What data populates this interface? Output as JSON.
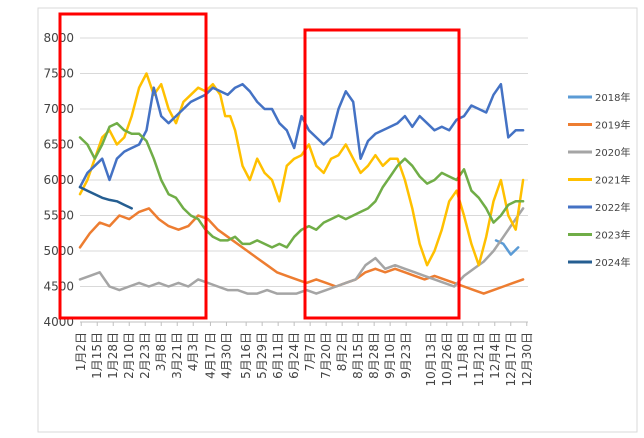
{
  "chart_data": {
    "type": "line",
    "ylim": [
      4000,
      8000
    ],
    "yticks": [
      "4000",
      "4500",
      "5000",
      "5500",
      "6000",
      "6500",
      "7000",
      "7500",
      "8000"
    ],
    "xlim": [
      0,
      364
    ],
    "xticks": [
      {
        "label": "1月2日",
        "day": 1
      },
      {
        "label": "1月15日",
        "day": 14
      },
      {
        "label": "1月28日",
        "day": 27
      },
      {
        "label": "2月10日",
        "day": 40
      },
      {
        "label": "2月23日",
        "day": 53
      },
      {
        "label": "3月8日",
        "day": 66
      },
      {
        "label": "3月21日",
        "day": 79
      },
      {
        "label": "4月3日",
        "day": 92
      },
      {
        "label": "4月17日",
        "day": 106
      },
      {
        "label": "4月30日",
        "day": 119
      },
      {
        "label": "5月16日",
        "day": 135
      },
      {
        "label": "5月29日",
        "day": 148
      },
      {
        "label": "6月11日",
        "day": 161
      },
      {
        "label": "6月24日",
        "day": 174
      },
      {
        "label": "7月7日",
        "day": 187
      },
      {
        "label": "7月20日",
        "day": 200
      },
      {
        "label": "8月2日",
        "day": 213
      },
      {
        "label": "8月15日",
        "day": 226
      },
      {
        "label": "8月28日",
        "day": 239
      },
      {
        "label": "9月10日",
        "day": 252
      },
      {
        "label": "9月23日",
        "day": 265
      },
      {
        "label": "10月13日",
        "day": 285
      },
      {
        "label": "10月26日",
        "day": 298
      },
      {
        "label": "11月8日",
        "day": 311
      },
      {
        "label": "11月21日",
        "day": 324
      },
      {
        "label": "12月4日",
        "day": 337
      },
      {
        "label": "12月17日",
        "day": 350
      },
      {
        "label": "12月30日",
        "day": 363
      }
    ],
    "series": [
      {
        "name": "2018年",
        "color": "#5B9BD5",
        "points": [
          [
            338,
            5150
          ],
          [
            344,
            5100
          ],
          [
            350,
            4950
          ],
          [
            356,
            5050
          ]
        ]
      },
      {
        "name": "2019年",
        "color": "#ED7D31",
        "points": [
          [
            0,
            5050
          ],
          [
            8,
            5250
          ],
          [
            16,
            5400
          ],
          [
            24,
            5350
          ],
          [
            32,
            5500
          ],
          [
            40,
            5450
          ],
          [
            48,
            5550
          ],
          [
            56,
            5600
          ],
          [
            64,
            5450
          ],
          [
            72,
            5350
          ],
          [
            80,
            5300
          ],
          [
            88,
            5350
          ],
          [
            96,
            5500
          ],
          [
            104,
            5450
          ],
          [
            112,
            5300
          ],
          [
            120,
            5200
          ],
          [
            128,
            5100
          ],
          [
            136,
            5000
          ],
          [
            144,
            4900
          ],
          [
            152,
            4800
          ],
          [
            160,
            4700
          ],
          [
            168,
            4650
          ],
          [
            176,
            4600
          ],
          [
            184,
            4550
          ],
          [
            192,
            4600
          ],
          [
            200,
            4550
          ],
          [
            208,
            4500
          ],
          [
            216,
            4550
          ],
          [
            224,
            4600
          ],
          [
            232,
            4700
          ],
          [
            240,
            4750
          ],
          [
            248,
            4700
          ],
          [
            256,
            4750
          ],
          [
            264,
            4700
          ],
          [
            272,
            4650
          ],
          [
            280,
            4600
          ],
          [
            288,
            4650
          ],
          [
            296,
            4600
          ],
          [
            304,
            4550
          ],
          [
            312,
            4500
          ],
          [
            320,
            4450
          ],
          [
            328,
            4400
          ],
          [
            336,
            4450
          ],
          [
            344,
            4500
          ],
          [
            352,
            4550
          ],
          [
            360,
            4600
          ]
        ]
      },
      {
        "name": "2020年",
        "color": "#A5A5A5",
        "points": [
          [
            0,
            4600
          ],
          [
            8,
            4650
          ],
          [
            16,
            4700
          ],
          [
            24,
            4500
          ],
          [
            32,
            4450
          ],
          [
            40,
            4500
          ],
          [
            48,
            4550
          ],
          [
            56,
            4500
          ],
          [
            64,
            4550
          ],
          [
            72,
            4500
          ],
          [
            80,
            4550
          ],
          [
            88,
            4500
          ],
          [
            96,
            4600
          ],
          [
            104,
            4550
          ],
          [
            112,
            4500
          ],
          [
            120,
            4450
          ],
          [
            128,
            4450
          ],
          [
            136,
            4400
          ],
          [
            144,
            4400
          ],
          [
            152,
            4450
          ],
          [
            160,
            4400
          ],
          [
            168,
            4400
          ],
          [
            176,
            4400
          ],
          [
            184,
            4450
          ],
          [
            192,
            4400
          ],
          [
            200,
            4450
          ],
          [
            208,
            4500
          ],
          [
            216,
            4550
          ],
          [
            224,
            4600
          ],
          [
            232,
            4800
          ],
          [
            240,
            4900
          ],
          [
            248,
            4750
          ],
          [
            256,
            4800
          ],
          [
            264,
            4750
          ],
          [
            272,
            4700
          ],
          [
            280,
            4650
          ],
          [
            288,
            4600
          ],
          [
            296,
            4550
          ],
          [
            304,
            4500
          ],
          [
            312,
            4650
          ],
          [
            320,
            4750
          ],
          [
            328,
            4850
          ],
          [
            336,
            5000
          ],
          [
            344,
            5200
          ],
          [
            352,
            5400
          ],
          [
            360,
            5600
          ]
        ]
      },
      {
        "name": "2021年",
        "color": "#FFC000",
        "points": [
          [
            0,
            5800
          ],
          [
            6,
            6000
          ],
          [
            12,
            6300
          ],
          [
            18,
            6600
          ],
          [
            24,
            6700
          ],
          [
            30,
            6500
          ],
          [
            36,
            6600
          ],
          [
            42,
            6900
          ],
          [
            48,
            7300
          ],
          [
            54,
            7500
          ],
          [
            60,
            7200
          ],
          [
            66,
            7350
          ],
          [
            72,
            7000
          ],
          [
            78,
            6800
          ],
          [
            84,
            7100
          ],
          [
            90,
            7200
          ],
          [
            96,
            7300
          ],
          [
            102,
            7250
          ],
          [
            108,
            7350
          ],
          [
            114,
            7200
          ],
          [
            118,
            6900
          ],
          [
            122,
            6900
          ],
          [
            126,
            6700
          ],
          [
            132,
            6200
          ],
          [
            138,
            6000
          ],
          [
            144,
            6300
          ],
          [
            150,
            6100
          ],
          [
            156,
            6000
          ],
          [
            162,
            5700
          ],
          [
            168,
            6200
          ],
          [
            174,
            6300
          ],
          [
            180,
            6350
          ],
          [
            186,
            6500
          ],
          [
            192,
            6200
          ],
          [
            198,
            6100
          ],
          [
            204,
            6300
          ],
          [
            210,
            6350
          ],
          [
            216,
            6500
          ],
          [
            222,
            6300
          ],
          [
            228,
            6100
          ],
          [
            234,
            6200
          ],
          [
            240,
            6350
          ],
          [
            246,
            6200
          ],
          [
            252,
            6300
          ],
          [
            258,
            6300
          ],
          [
            264,
            6000
          ],
          [
            270,
            5600
          ],
          [
            276,
            5100
          ],
          [
            282,
            4800
          ],
          [
            288,
            5000
          ],
          [
            294,
            5300
          ],
          [
            300,
            5700
          ],
          [
            306,
            5850
          ],
          [
            312,
            5500
          ],
          [
            318,
            5100
          ],
          [
            324,
            4800
          ],
          [
            330,
            5200
          ],
          [
            336,
            5700
          ],
          [
            342,
            6000
          ],
          [
            348,
            5500
          ],
          [
            354,
            5300
          ],
          [
            360,
            6000
          ]
        ]
      },
      {
        "name": "2022年",
        "color": "#4472C4",
        "points": [
          [
            0,
            5900
          ],
          [
            6,
            6100
          ],
          [
            12,
            6200
          ],
          [
            18,
            6300
          ],
          [
            24,
            6000
          ],
          [
            30,
            6300
          ],
          [
            36,
            6400
          ],
          [
            42,
            6450
          ],
          [
            48,
            6500
          ],
          [
            54,
            6700
          ],
          [
            60,
            7300
          ],
          [
            66,
            6900
          ],
          [
            72,
            6800
          ],
          [
            78,
            6900
          ],
          [
            84,
            7000
          ],
          [
            90,
            7100
          ],
          [
            96,
            7150
          ],
          [
            102,
            7200
          ],
          [
            108,
            7300
          ],
          [
            114,
            7250
          ],
          [
            120,
            7200
          ],
          [
            126,
            7300
          ],
          [
            132,
            7350
          ],
          [
            138,
            7250
          ],
          [
            144,
            7100
          ],
          [
            150,
            7000
          ],
          [
            156,
            7000
          ],
          [
            162,
            6800
          ],
          [
            168,
            6700
          ],
          [
            174,
            6450
          ],
          [
            180,
            6900
          ],
          [
            186,
            6700
          ],
          [
            192,
            6600
          ],
          [
            198,
            6500
          ],
          [
            204,
            6600
          ],
          [
            210,
            7000
          ],
          [
            216,
            7250
          ],
          [
            222,
            7100
          ],
          [
            228,
            6300
          ],
          [
            234,
            6550
          ],
          [
            240,
            6650
          ],
          [
            246,
            6700
          ],
          [
            252,
            6750
          ],
          [
            258,
            6800
          ],
          [
            264,
            6900
          ],
          [
            270,
            6750
          ],
          [
            276,
            6900
          ],
          [
            282,
            6800
          ],
          [
            288,
            6700
          ],
          [
            294,
            6750
          ],
          [
            300,
            6700
          ],
          [
            306,
            6850
          ],
          [
            312,
            6900
          ],
          [
            318,
            7050
          ],
          [
            324,
            7000
          ],
          [
            330,
            6950
          ],
          [
            336,
            7200
          ],
          [
            342,
            7350
          ],
          [
            348,
            6600
          ],
          [
            354,
            6700
          ],
          [
            360,
            6700
          ]
        ]
      },
      {
        "name": "2023年",
        "color": "#70AD47",
        "points": [
          [
            0,
            6600
          ],
          [
            6,
            6500
          ],
          [
            12,
            6300
          ],
          [
            18,
            6500
          ],
          [
            24,
            6750
          ],
          [
            30,
            6800
          ],
          [
            36,
            6700
          ],
          [
            42,
            6650
          ],
          [
            48,
            6650
          ],
          [
            54,
            6550
          ],
          [
            60,
            6300
          ],
          [
            66,
            6000
          ],
          [
            72,
            5800
          ],
          [
            78,
            5750
          ],
          [
            84,
            5600
          ],
          [
            90,
            5500
          ],
          [
            96,
            5450
          ],
          [
            102,
            5300
          ],
          [
            108,
            5200
          ],
          [
            114,
            5150
          ],
          [
            120,
            5150
          ],
          [
            126,
            5200
          ],
          [
            132,
            5100
          ],
          [
            138,
            5100
          ],
          [
            144,
            5150
          ],
          [
            150,
            5100
          ],
          [
            156,
            5050
          ],
          [
            162,
            5100
          ],
          [
            168,
            5050
          ],
          [
            174,
            5200
          ],
          [
            180,
            5300
          ],
          [
            186,
            5350
          ],
          [
            192,
            5300
          ],
          [
            198,
            5400
          ],
          [
            204,
            5450
          ],
          [
            210,
            5500
          ],
          [
            216,
            5450
          ],
          [
            222,
            5500
          ],
          [
            228,
            5550
          ],
          [
            234,
            5600
          ],
          [
            240,
            5700
          ],
          [
            246,
            5900
          ],
          [
            252,
            6050
          ],
          [
            258,
            6200
          ],
          [
            264,
            6300
          ],
          [
            270,
            6200
          ],
          [
            276,
            6050
          ],
          [
            282,
            5950
          ],
          [
            288,
            6000
          ],
          [
            294,
            6100
          ],
          [
            300,
            6050
          ],
          [
            306,
            6000
          ],
          [
            312,
            6150
          ],
          [
            318,
            5850
          ],
          [
            324,
            5750
          ],
          [
            330,
            5600
          ],
          [
            336,
            5400
          ],
          [
            342,
            5500
          ],
          [
            348,
            5650
          ],
          [
            354,
            5700
          ],
          [
            360,
            5700
          ]
        ]
      },
      {
        "name": "2024年",
        "color": "#255E91",
        "points": [
          [
            0,
            5900
          ],
          [
            6,
            5850
          ],
          [
            12,
            5800
          ],
          [
            18,
            5750
          ],
          [
            24,
            5720
          ],
          [
            30,
            5700
          ],
          [
            36,
            5650
          ],
          [
            42,
            5600
          ]
        ]
      }
    ]
  }
}
